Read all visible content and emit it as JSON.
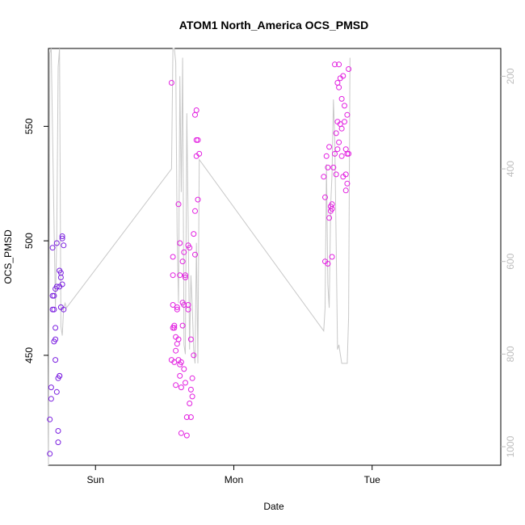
{
  "chart_data": {
    "type": "scatter",
    "title": "ATOM1 North_America OCS_PMSD",
    "xlabel": "Date",
    "ylabel": "OCS_PMSD",
    "x_ticks": [
      "Sun",
      "Mon",
      "Tue"
    ],
    "x_tick_values": [
      0,
      1,
      2
    ],
    "xlim": [
      -0.34,
      2.93
    ],
    "ylim": [
      402,
      584
    ],
    "y_ticks": [
      450,
      500,
      550
    ],
    "y2_ticks": [
      200,
      400,
      600,
      800,
      1000
    ],
    "y2lim": [
      1040,
      140
    ],
    "y2_reversed": true,
    "grid": false,
    "colors": {
      "early_points": "#7b1fe0",
      "late_points": "#e21fe0",
      "line": "#c8c8c8",
      "frame": "#000000",
      "right_axis": "#bdbdbd"
    },
    "series": [
      {
        "kind": "points",
        "color": "early",
        "points": [
          [
            -0.33,
            407
          ],
          [
            -0.33,
            422
          ],
          [
            -0.32,
            431
          ],
          [
            -0.32,
            436
          ],
          [
            -0.31,
            470
          ],
          [
            -0.31,
            476
          ],
          [
            -0.31,
            497
          ],
          [
            -0.3,
            470
          ],
          [
            -0.3,
            476
          ],
          [
            -0.3,
            456
          ],
          [
            -0.29,
            448
          ],
          [
            -0.29,
            457
          ],
          [
            -0.29,
            462
          ],
          [
            -0.29,
            479
          ],
          [
            -0.28,
            480
          ],
          [
            -0.28,
            499
          ],
          [
            -0.28,
            434
          ],
          [
            -0.27,
            417
          ],
          [
            -0.27,
            412
          ],
          [
            -0.27,
            440
          ],
          [
            -0.26,
            441
          ],
          [
            -0.26,
            441
          ],
          [
            -0.26,
            480
          ],
          [
            -0.26,
            487
          ],
          [
            -0.25,
            471
          ],
          [
            -0.25,
            486
          ],
          [
            -0.25,
            484
          ],
          [
            -0.24,
            481
          ],
          [
            -0.24,
            502
          ],
          [
            -0.24,
            501
          ],
          [
            -0.23,
            470
          ],
          [
            -0.23,
            498
          ]
        ]
      },
      {
        "kind": "points",
        "color": "late",
        "points": [
          [
            0.55,
            569
          ],
          [
            0.55,
            448
          ],
          [
            0.56,
            493
          ],
          [
            0.56,
            485
          ],
          [
            0.56,
            472
          ],
          [
            0.56,
            462
          ],
          [
            0.57,
            462
          ],
          [
            0.57,
            447
          ],
          [
            0.57,
            463
          ],
          [
            0.58,
            452
          ],
          [
            0.58,
            437
          ],
          [
            0.58,
            458
          ],
          [
            0.59,
            470
          ],
          [
            0.59,
            471
          ],
          [
            0.59,
            455
          ],
          [
            0.6,
            448
          ],
          [
            0.6,
            457
          ],
          [
            0.6,
            516
          ],
          [
            0.61,
            499
          ],
          [
            0.61,
            485
          ],
          [
            0.61,
            446
          ],
          [
            0.61,
            441
          ],
          [
            0.62,
            436
          ],
          [
            0.62,
            416
          ],
          [
            0.62,
            447
          ],
          [
            0.63,
            463
          ],
          [
            0.63,
            473
          ],
          [
            0.63,
            491
          ],
          [
            0.64,
            495
          ],
          [
            0.64,
            472
          ],
          [
            0.64,
            444
          ],
          [
            0.65,
            438
          ],
          [
            0.65,
            484
          ],
          [
            0.65,
            485
          ],
          [
            0.66,
            415
          ],
          [
            0.66,
            423
          ],
          [
            0.67,
            472
          ],
          [
            0.67,
            470
          ],
          [
            0.67,
            498
          ],
          [
            0.68,
            497
          ],
          [
            0.68,
            429
          ],
          [
            0.69,
            423
          ],
          [
            0.69,
            457
          ],
          [
            0.69,
            435
          ],
          [
            0.7,
            440
          ],
          [
            0.7,
            432
          ],
          [
            0.71,
            503
          ],
          [
            0.71,
            450
          ],
          [
            0.72,
            494
          ],
          [
            0.72,
            555
          ],
          [
            0.72,
            513
          ],
          [
            0.73,
            557
          ],
          [
            0.73,
            537
          ],
          [
            0.73,
            544
          ],
          [
            0.74,
            544
          ],
          [
            0.74,
            518
          ],
          [
            0.75,
            538
          ],
          [
            1.65,
            528
          ],
          [
            1.66,
            491
          ],
          [
            1.66,
            519
          ],
          [
            1.67,
            537
          ],
          [
            1.68,
            490
          ],
          [
            1.68,
            532
          ],
          [
            1.69,
            541
          ],
          [
            1.69,
            510
          ],
          [
            1.7,
            513
          ],
          [
            1.7,
            515
          ],
          [
            1.71,
            516
          ],
          [
            1.71,
            514
          ],
          [
            1.71,
            493
          ],
          [
            1.72,
            532
          ],
          [
            1.73,
            538
          ],
          [
            1.73,
            577
          ],
          [
            1.74,
            547
          ],
          [
            1.74,
            529
          ],
          [
            1.75,
            569
          ],
          [
            1.75,
            540
          ],
          [
            1.75,
            552
          ],
          [
            1.76,
            567
          ],
          [
            1.76,
            577
          ],
          [
            1.76,
            543
          ],
          [
            1.77,
            551
          ],
          [
            1.77,
            571
          ],
          [
            1.78,
            562
          ],
          [
            1.78,
            549
          ],
          [
            1.78,
            537
          ],
          [
            1.79,
            572
          ],
          [
            1.79,
            528
          ],
          [
            1.8,
            559
          ],
          [
            1.8,
            552
          ],
          [
            1.81,
            540
          ],
          [
            1.81,
            529
          ],
          [
            1.81,
            522
          ],
          [
            1.82,
            525
          ],
          [
            1.82,
            555
          ],
          [
            1.82,
            538
          ],
          [
            1.83,
            538
          ],
          [
            1.83,
            575
          ]
        ]
      },
      {
        "kind": "line",
        "axis": "right",
        "points": [
          [
            -0.34,
            1040
          ],
          [
            -0.33,
            150
          ],
          [
            -0.32,
            140
          ],
          [
            -0.3,
            520
          ],
          [
            -0.29,
            700
          ],
          [
            -0.28,
            540
          ],
          [
            -0.27,
            180
          ],
          [
            -0.26,
            140
          ],
          [
            -0.25,
            740
          ],
          [
            -0.24,
            760
          ],
          [
            -0.23,
            700
          ],
          [
            -0.22,
            690
          ],
          [
            -0.21,
            700
          ],
          [
            0.55,
            400
          ],
          [
            0.56,
            120
          ],
          [
            0.57,
            130
          ],
          [
            0.58,
            170
          ],
          [
            0.59,
            540
          ],
          [
            0.6,
            690
          ],
          [
            0.61,
            200
          ],
          [
            0.62,
            450
          ],
          [
            0.63,
            160
          ],
          [
            0.64,
            780
          ],
          [
            0.65,
            800
          ],
          [
            0.66,
            280
          ],
          [
            0.67,
            520
          ],
          [
            0.68,
            790
          ],
          [
            0.69,
            630
          ],
          [
            0.7,
            700
          ],
          [
            0.71,
            790
          ],
          [
            0.72,
            820
          ],
          [
            0.73,
            560
          ],
          [
            0.74,
            820
          ],
          [
            0.75,
            380
          ],
          [
            1.65,
            750
          ],
          [
            1.66,
            700
          ],
          [
            1.67,
            390
          ],
          [
            1.68,
            650
          ],
          [
            1.69,
            700
          ],
          [
            1.7,
            480
          ],
          [
            1.71,
            410
          ],
          [
            1.72,
            250
          ],
          [
            1.73,
            340
          ],
          [
            1.74,
            560
          ],
          [
            1.75,
            790
          ],
          [
            1.76,
            780
          ],
          [
            1.77,
            800
          ],
          [
            1.78,
            820
          ],
          [
            1.8,
            820
          ],
          [
            1.82,
            820
          ],
          [
            1.83,
            720
          ],
          [
            1.84,
            160
          ]
        ]
      }
    ]
  }
}
